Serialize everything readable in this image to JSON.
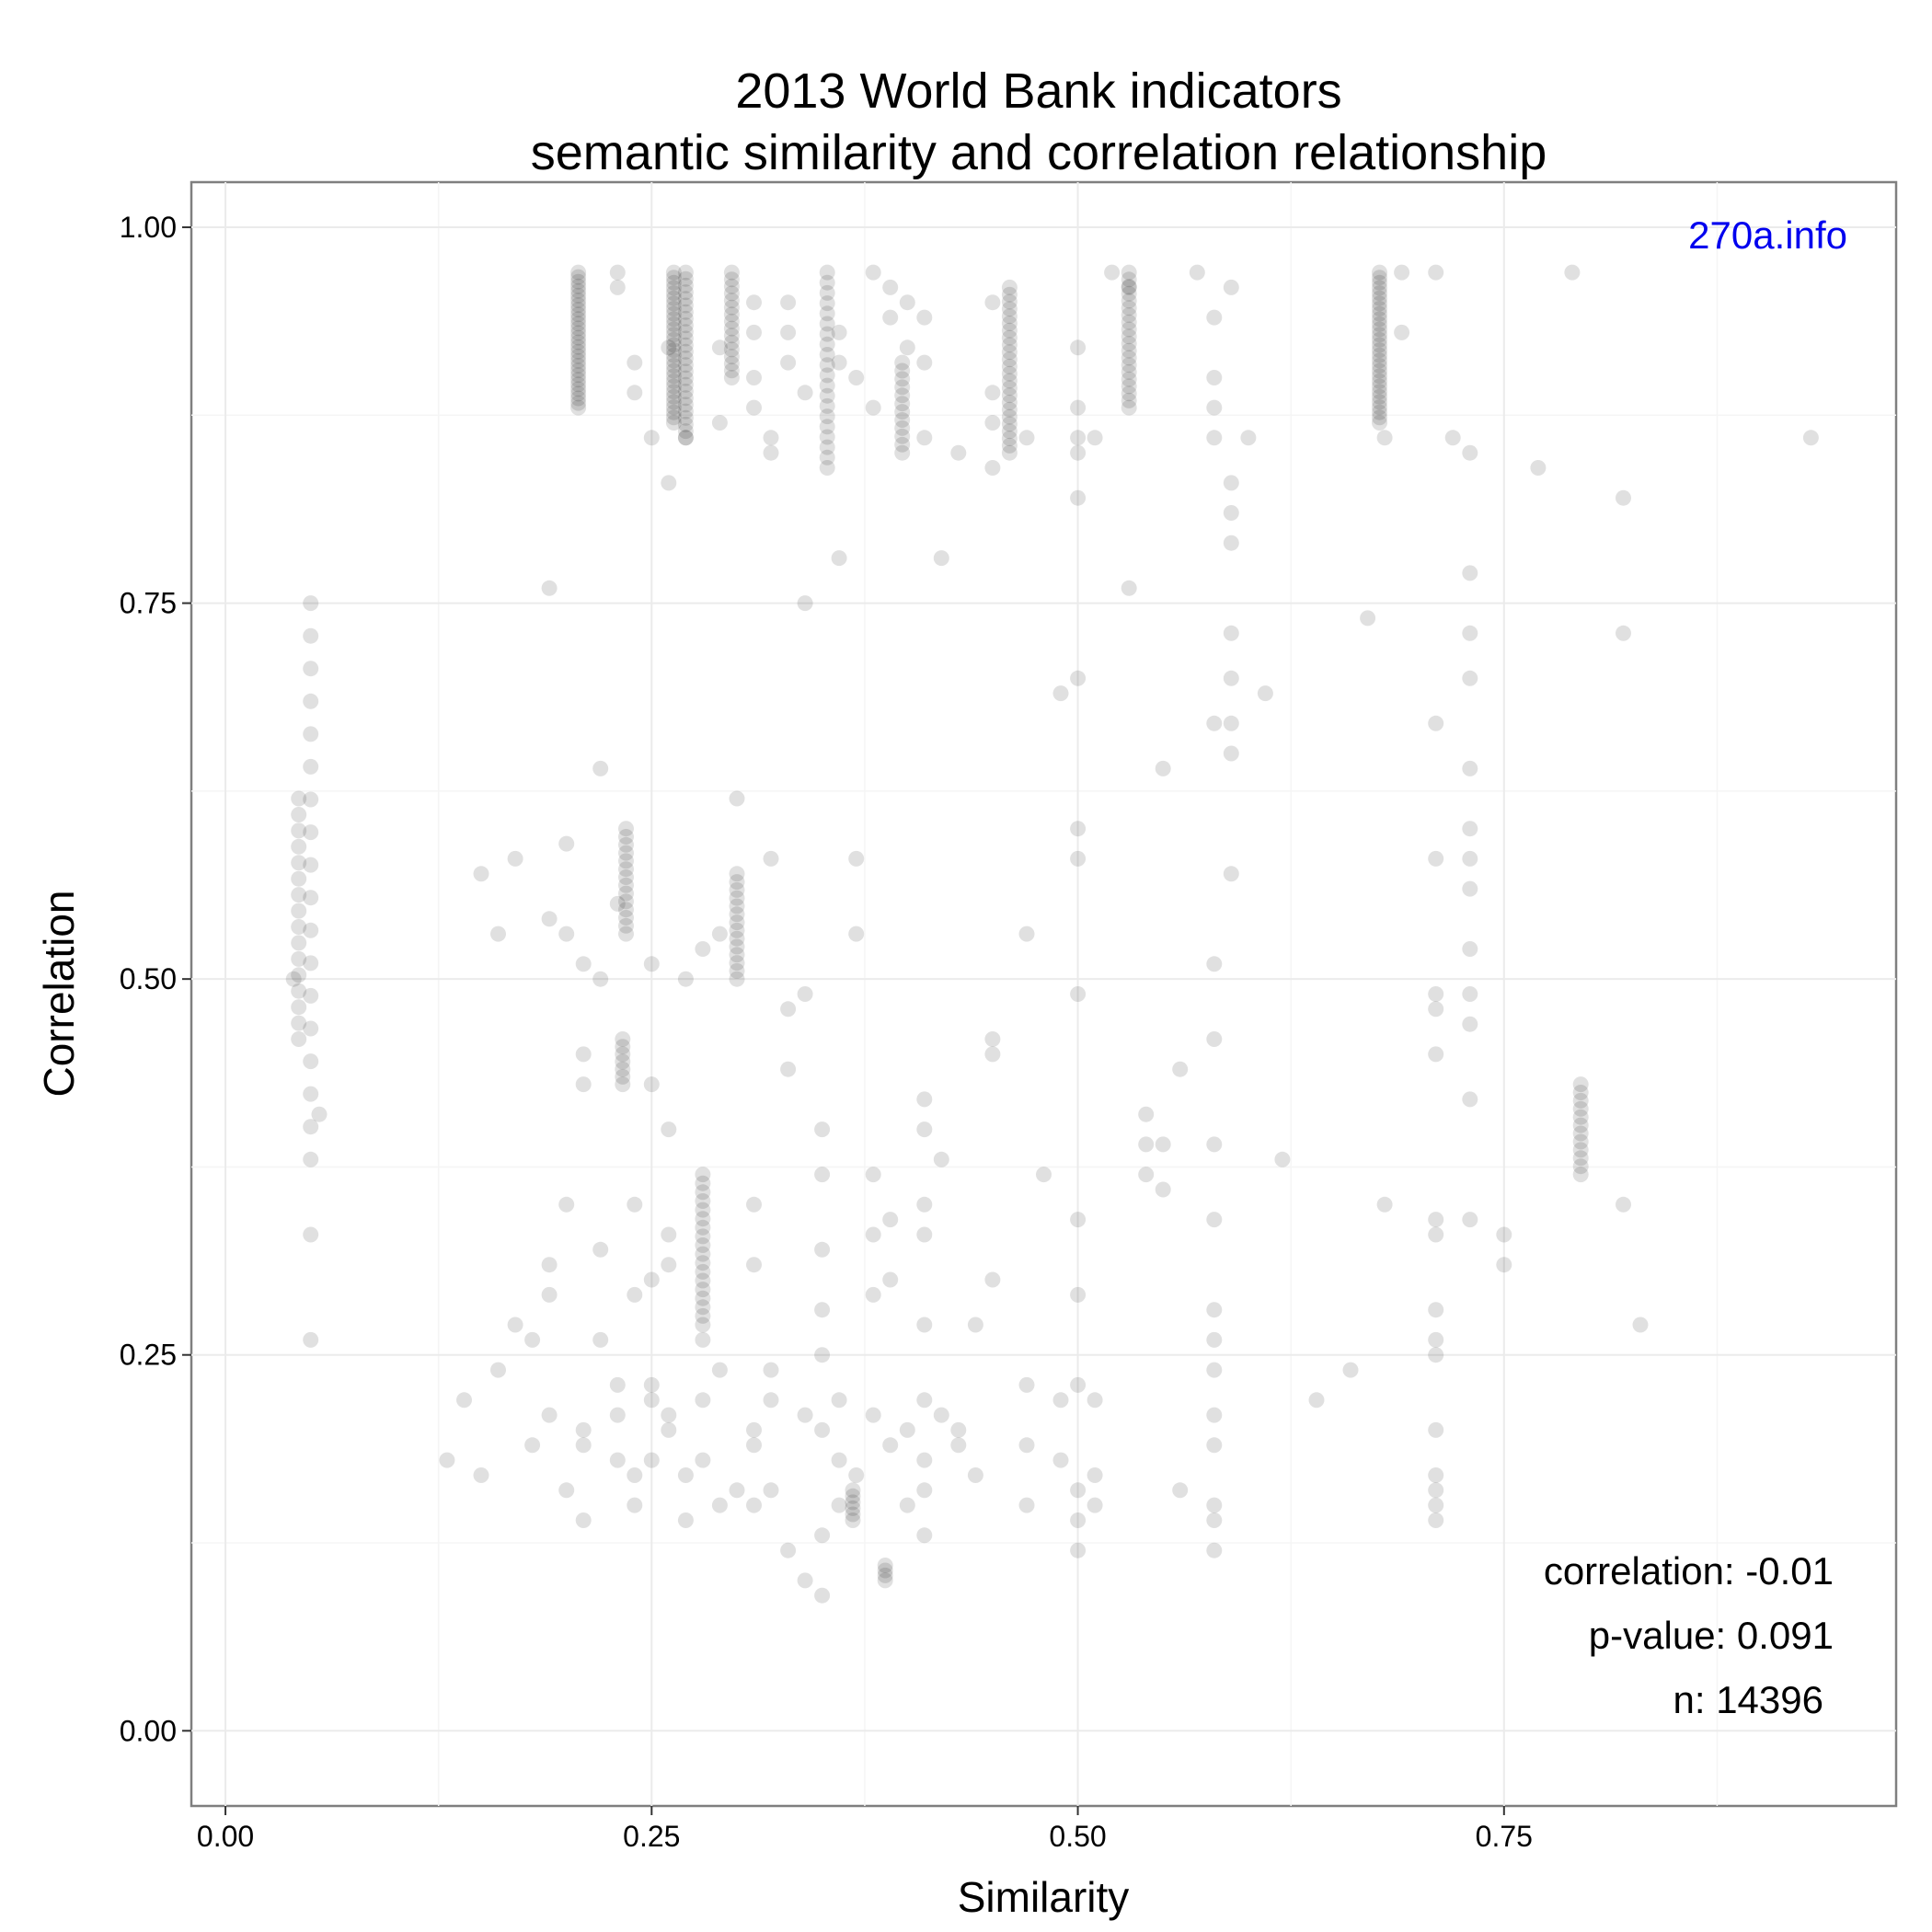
{
  "chart_data": {
    "type": "scatter",
    "title": "2013 World Bank indicators",
    "subtitle": "semantic similarity and correlation relationship",
    "xlabel": "Similarity",
    "ylabel": "Correlation",
    "xlim": [
      -0.02,
      0.98
    ],
    "ylim": [
      -0.05,
      1.03
    ],
    "x_ticks": [
      "0.00",
      "0.25",
      "0.50",
      "0.75"
    ],
    "y_ticks": [
      "0.00",
      "0.25",
      "0.50",
      "0.75",
      "1.00"
    ],
    "grid": true,
    "point_color": "#000000",
    "point_alpha": 0.12,
    "watermark": "270a.info",
    "watermark_color": "#0000ee",
    "stats": {
      "correlation": "correlation: -0.01",
      "p_value": "p-value: 0.091",
      "n": "n: 14396"
    },
    "column_clusters": [
      {
        "x": 0.207,
        "y_min": 0.88,
        "y_max": 0.97,
        "count": 30
      },
      {
        "x": 0.263,
        "y_min": 0.87,
        "y_max": 0.97,
        "count": 30
      },
      {
        "x": 0.27,
        "y_min": 0.86,
        "y_max": 0.97,
        "count": 26
      },
      {
        "x": 0.297,
        "y_min": 0.9,
        "y_max": 0.97,
        "count": 16
      },
      {
        "x": 0.353,
        "y_min": 0.84,
        "y_max": 0.97,
        "count": 20
      },
      {
        "x": 0.397,
        "y_min": 0.85,
        "y_max": 0.91,
        "count": 12
      },
      {
        "x": 0.46,
        "y_min": 0.85,
        "y_max": 0.96,
        "count": 24
      },
      {
        "x": 0.53,
        "y_min": 0.88,
        "y_max": 0.97,
        "count": 20
      },
      {
        "x": 0.677,
        "y_min": 0.87,
        "y_max": 0.97,
        "count": 30
      },
      {
        "x": 0.235,
        "y_min": 0.53,
        "y_max": 0.6,
        "count": 14
      },
      {
        "x": 0.3,
        "y_min": 0.5,
        "y_max": 0.57,
        "count": 14
      },
      {
        "x": 0.233,
        "y_min": 0.43,
        "y_max": 0.46,
        "count": 7
      },
      {
        "x": 0.28,
        "y_min": 0.27,
        "y_max": 0.37,
        "count": 18
      },
      {
        "x": 0.795,
        "y_min": 0.37,
        "y_max": 0.43,
        "count": 12
      },
      {
        "x": 0.368,
        "y_min": 0.14,
        "y_max": 0.16,
        "count": 6
      },
      {
        "x": 0.387,
        "y_min": 0.1,
        "y_max": 0.11,
        "count": 4
      },
      {
        "x": 0.043,
        "y_min": 0.46,
        "y_max": 0.62,
        "count": 16
      },
      {
        "x": 0.05,
        "y_min": 0.38,
        "y_max": 0.75,
        "count": 18
      }
    ],
    "points": [
      [
        0.04,
        0.5
      ],
      [
        0.05,
        0.26
      ],
      [
        0.05,
        0.33
      ],
      [
        0.055,
        0.41
      ],
      [
        0.21,
        0.51
      ],
      [
        0.22,
        0.5
      ],
      [
        0.2,
        0.53
      ],
      [
        0.23,
        0.55
      ],
      [
        0.25,
        0.51
      ],
      [
        0.27,
        0.5
      ],
      [
        0.28,
        0.52
      ],
      [
        0.29,
        0.53
      ],
      [
        0.32,
        0.58
      ],
      [
        0.34,
        0.49
      ],
      [
        0.37,
        0.53
      ],
      [
        0.37,
        0.58
      ],
      [
        0.15,
        0.57
      ],
      [
        0.16,
        0.53
      ],
      [
        0.17,
        0.58
      ],
      [
        0.19,
        0.54
      ],
      [
        0.2,
        0.59
      ],
      [
        0.21,
        0.45
      ],
      [
        0.21,
        0.43
      ],
      [
        0.22,
        0.64
      ],
      [
        0.25,
        0.43
      ],
      [
        0.26,
        0.4
      ],
      [
        0.24,
        0.35
      ],
      [
        0.3,
        0.62
      ],
      [
        0.33,
        0.48
      ],
      [
        0.33,
        0.44
      ],
      [
        0.35,
        0.4
      ],
      [
        0.35,
        0.37
      ],
      [
        0.38,
        0.37
      ],
      [
        0.41,
        0.42
      ],
      [
        0.41,
        0.4
      ],
      [
        0.42,
        0.38
      ],
      [
        0.41,
        0.35
      ],
      [
        0.48,
        0.37
      ],
      [
        0.47,
        0.53
      ],
      [
        0.45,
        0.46
      ],
      [
        0.45,
        0.45
      ],
      [
        0.5,
        0.49
      ],
      [
        0.5,
        0.6
      ],
      [
        0.5,
        0.58
      ],
      [
        0.5,
        0.7
      ],
      [
        0.49,
        0.69
      ],
      [
        0.55,
        0.64
      ],
      [
        0.59,
        0.73
      ],
      [
        0.59,
        0.7
      ],
      [
        0.59,
        0.67
      ],
      [
        0.58,
        0.67
      ],
      [
        0.61,
        0.69
      ],
      [
        0.59,
        0.65
      ],
      [
        0.59,
        0.57
      ],
      [
        0.58,
        0.51
      ],
      [
        0.58,
        0.46
      ],
      [
        0.58,
        0.39
      ],
      [
        0.58,
        0.34
      ],
      [
        0.54,
        0.41
      ],
      [
        0.54,
        0.39
      ],
      [
        0.55,
        0.39
      ],
      [
        0.54,
        0.37
      ],
      [
        0.55,
        0.36
      ],
      [
        0.56,
        0.44
      ],
      [
        0.62,
        0.38
      ],
      [
        0.71,
        0.67
      ],
      [
        0.71,
        0.58
      ],
      [
        0.71,
        0.49
      ],
      [
        0.71,
        0.48
      ],
      [
        0.71,
        0.45
      ],
      [
        0.71,
        0.34
      ],
      [
        0.71,
        0.33
      ],
      [
        0.73,
        0.73
      ],
      [
        0.73,
        0.7
      ],
      [
        0.73,
        0.64
      ],
      [
        0.73,
        0.6
      ],
      [
        0.73,
        0.58
      ],
      [
        0.73,
        0.56
      ],
      [
        0.73,
        0.52
      ],
      [
        0.73,
        0.49
      ],
      [
        0.73,
        0.47
      ],
      [
        0.73,
        0.42
      ],
      [
        0.73,
        0.34
      ],
      [
        0.75,
        0.33
      ],
      [
        0.75,
        0.31
      ],
      [
        0.68,
        0.35
      ],
      [
        0.82,
        0.35
      ],
      [
        0.83,
        0.27
      ],
      [
        0.73,
        0.77
      ],
      [
        0.73,
        0.85
      ],
      [
        0.77,
        0.84
      ],
      [
        0.82,
        0.82
      ],
      [
        0.82,
        0.73
      ],
      [
        0.93,
        0.86
      ],
      [
        0.72,
        0.86
      ],
      [
        0.67,
        0.74
      ],
      [
        0.53,
        0.76
      ],
      [
        0.6,
        0.86
      ],
      [
        0.58,
        0.86
      ],
      [
        0.58,
        0.88
      ],
      [
        0.58,
        0.9
      ],
      [
        0.59,
        0.83
      ],
      [
        0.59,
        0.81
      ],
      [
        0.59,
        0.79
      ],
      [
        0.57,
        0.97
      ],
      [
        0.58,
        0.94
      ],
      [
        0.59,
        0.96
      ],
      [
        0.5,
        0.92
      ],
      [
        0.5,
        0.88
      ],
      [
        0.5,
        0.86
      ],
      [
        0.5,
        0.85
      ],
      [
        0.5,
        0.82
      ],
      [
        0.51,
        0.86
      ],
      [
        0.43,
        0.85
      ],
      [
        0.42,
        0.78
      ],
      [
        0.36,
        0.78
      ],
      [
        0.34,
        0.75
      ],
      [
        0.19,
        0.76
      ],
      [
        0.14,
        0.22
      ],
      [
        0.13,
        0.18
      ],
      [
        0.15,
        0.17
      ],
      [
        0.16,
        0.24
      ],
      [
        0.17,
        0.27
      ],
      [
        0.18,
        0.26
      ],
      [
        0.19,
        0.21
      ],
      [
        0.18,
        0.19
      ],
      [
        0.19,
        0.31
      ],
      [
        0.19,
        0.29
      ],
      [
        0.2,
        0.35
      ],
      [
        0.2,
        0.16
      ],
      [
        0.21,
        0.2
      ],
      [
        0.21,
        0.19
      ],
      [
        0.21,
        0.14
      ],
      [
        0.22,
        0.26
      ],
      [
        0.22,
        0.32
      ],
      [
        0.23,
        0.23
      ],
      [
        0.23,
        0.21
      ],
      [
        0.23,
        0.18
      ],
      [
        0.24,
        0.17
      ],
      [
        0.24,
        0.15
      ],
      [
        0.24,
        0.29
      ],
      [
        0.25,
        0.3
      ],
      [
        0.25,
        0.23
      ],
      [
        0.25,
        0.22
      ],
      [
        0.25,
        0.18
      ],
      [
        0.26,
        0.33
      ],
      [
        0.26,
        0.31
      ],
      [
        0.26,
        0.21
      ],
      [
        0.26,
        0.2
      ],
      [
        0.27,
        0.17
      ],
      [
        0.27,
        0.14
      ],
      [
        0.28,
        0.22
      ],
      [
        0.28,
        0.18
      ],
      [
        0.28,
        0.26
      ],
      [
        0.29,
        0.24
      ],
      [
        0.29,
        0.15
      ],
      [
        0.3,
        0.16
      ],
      [
        0.31,
        0.15
      ],
      [
        0.31,
        0.2
      ],
      [
        0.31,
        0.19
      ],
      [
        0.31,
        0.35
      ],
      [
        0.31,
        0.31
      ],
      [
        0.32,
        0.24
      ],
      [
        0.32,
        0.22
      ],
      [
        0.32,
        0.16
      ],
      [
        0.33,
        0.12
      ],
      [
        0.34,
        0.1
      ],
      [
        0.34,
        0.21
      ],
      [
        0.35,
        0.2
      ],
      [
        0.35,
        0.13
      ],
      [
        0.35,
        0.09
      ],
      [
        0.35,
        0.32
      ],
      [
        0.35,
        0.28
      ],
      [
        0.35,
        0.25
      ],
      [
        0.36,
        0.15
      ],
      [
        0.36,
        0.18
      ],
      [
        0.36,
        0.22
      ],
      [
        0.37,
        0.17
      ],
      [
        0.38,
        0.21
      ],
      [
        0.38,
        0.33
      ],
      [
        0.38,
        0.29
      ],
      [
        0.39,
        0.34
      ],
      [
        0.39,
        0.3
      ],
      [
        0.39,
        0.19
      ],
      [
        0.4,
        0.15
      ],
      [
        0.4,
        0.2
      ],
      [
        0.41,
        0.22
      ],
      [
        0.41,
        0.18
      ],
      [
        0.41,
        0.16
      ],
      [
        0.41,
        0.13
      ],
      [
        0.41,
        0.33
      ],
      [
        0.41,
        0.27
      ],
      [
        0.42,
        0.21
      ],
      [
        0.43,
        0.2
      ],
      [
        0.43,
        0.19
      ],
      [
        0.44,
        0.27
      ],
      [
        0.45,
        0.3
      ],
      [
        0.44,
        0.17
      ],
      [
        0.47,
        0.23
      ],
      [
        0.47,
        0.19
      ],
      [
        0.47,
        0.15
      ],
      [
        0.49,
        0.22
      ],
      [
        0.49,
        0.18
      ],
      [
        0.5,
        0.16
      ],
      [
        0.5,
        0.14
      ],
      [
        0.5,
        0.12
      ],
      [
        0.5,
        0.23
      ],
      [
        0.5,
        0.29
      ],
      [
        0.5,
        0.34
      ],
      [
        0.51,
        0.22
      ],
      [
        0.51,
        0.17
      ],
      [
        0.51,
        0.15
      ],
      [
        0.56,
        0.16
      ],
      [
        0.58,
        0.28
      ],
      [
        0.58,
        0.26
      ],
      [
        0.58,
        0.24
      ],
      [
        0.58,
        0.21
      ],
      [
        0.58,
        0.19
      ],
      [
        0.58,
        0.15
      ],
      [
        0.58,
        0.14
      ],
      [
        0.58,
        0.12
      ],
      [
        0.64,
        0.22
      ],
      [
        0.66,
        0.24
      ],
      [
        0.71,
        0.28
      ],
      [
        0.71,
        0.26
      ],
      [
        0.71,
        0.25
      ],
      [
        0.71,
        0.2
      ],
      [
        0.71,
        0.17
      ],
      [
        0.71,
        0.16
      ],
      [
        0.71,
        0.15
      ],
      [
        0.71,
        0.14
      ],
      [
        0.23,
        0.96
      ],
      [
        0.23,
        0.97
      ],
      [
        0.24,
        0.91
      ],
      [
        0.24,
        0.89
      ],
      [
        0.25,
        0.86
      ],
      [
        0.26,
        0.92
      ],
      [
        0.27,
        0.86
      ],
      [
        0.26,
        0.83
      ],
      [
        0.29,
        0.92
      ],
      [
        0.29,
        0.87
      ],
      [
        0.31,
        0.95
      ],
      [
        0.31,
        0.93
      ],
      [
        0.31,
        0.9
      ],
      [
        0.31,
        0.88
      ],
      [
        0.32,
        0.86
      ],
      [
        0.32,
        0.85
      ],
      [
        0.33,
        0.95
      ],
      [
        0.33,
        0.93
      ],
      [
        0.33,
        0.91
      ],
      [
        0.34,
        0.89
      ],
      [
        0.36,
        0.93
      ],
      [
        0.36,
        0.91
      ],
      [
        0.37,
        0.9
      ],
      [
        0.38,
        0.88
      ],
      [
        0.38,
        0.97
      ],
      [
        0.39,
        0.96
      ],
      [
        0.39,
        0.94
      ],
      [
        0.4,
        0.95
      ],
      [
        0.4,
        0.92
      ],
      [
        0.41,
        0.94
      ],
      [
        0.41,
        0.91
      ],
      [
        0.41,
        0.86
      ],
      [
        0.45,
        0.95
      ],
      [
        0.45,
        0.89
      ],
      [
        0.45,
        0.87
      ],
      [
        0.45,
        0.84
      ],
      [
        0.47,
        0.86
      ],
      [
        0.52,
        0.97
      ],
      [
        0.53,
        0.96
      ],
      [
        0.71,
        0.97
      ],
      [
        0.79,
        0.97
      ],
      [
        0.68,
        0.86
      ],
      [
        0.69,
        0.93
      ],
      [
        0.69,
        0.97
      ]
    ]
  }
}
